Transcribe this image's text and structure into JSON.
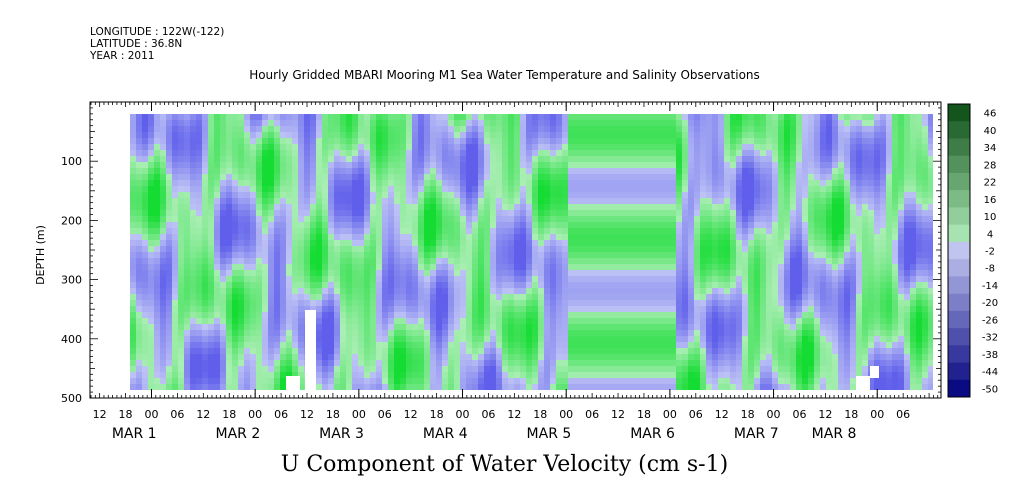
{
  "header": {
    "longitude": "LONGITUDE : 122W(-122)",
    "latitude": "LATITUDE : 36.8N",
    "year": "YEAR : 2011"
  },
  "chart_data": {
    "type": "heatmap",
    "title": "Hourly Gridded MBARI Mooring M1 Sea Water Temperature and Salinity Observations",
    "xlabel": "U Component of Water Velocity (cm s-1)",
    "ylabel": "DEPTH (m)",
    "y_range": [
      0,
      500
    ],
    "y_reversed": true,
    "y_ticks": [
      100,
      200,
      300,
      400,
      500
    ],
    "x_range_hours_since_feb28_00": [
      12,
      184
    ],
    "x_hour_ticks": [
      {
        "h": 12,
        "label": "12"
      },
      {
        "h": 18,
        "label": "18"
      },
      {
        "h": 24,
        "label": "00"
      },
      {
        "h": 30,
        "label": "06"
      },
      {
        "h": 36,
        "label": "12"
      },
      {
        "h": 42,
        "label": "18"
      },
      {
        "h": 48,
        "label": "00"
      },
      {
        "h": 54,
        "label": "06"
      },
      {
        "h": 60,
        "label": "12"
      },
      {
        "h": 66,
        "label": "18"
      },
      {
        "h": 72,
        "label": "00"
      },
      {
        "h": 78,
        "label": "06"
      },
      {
        "h": 84,
        "label": "12"
      },
      {
        "h": 90,
        "label": "18"
      },
      {
        "h": 96,
        "label": "00"
      },
      {
        "h": 102,
        "label": "06"
      },
      {
        "h": 108,
        "label": "12"
      },
      {
        "h": 114,
        "label": "18"
      },
      {
        "h": 120,
        "label": "00"
      },
      {
        "h": 126,
        "label": "06"
      },
      {
        "h": 132,
        "label": "12"
      },
      {
        "h": 138,
        "label": "18"
      },
      {
        "h": 144,
        "label": "00"
      },
      {
        "h": 150,
        "label": "06"
      },
      {
        "h": 156,
        "label": "12"
      },
      {
        "h": 162,
        "label": "18"
      },
      {
        "h": 168,
        "label": "00"
      },
      {
        "h": 174,
        "label": "06"
      },
      {
        "h": 180,
        "label": "12"
      },
      {
        "h": 186,
        "label": "18"
      },
      {
        "h": 192,
        "label": "00"
      },
      {
        "h": 198,
        "label": "06"
      }
    ],
    "x_day_labels": [
      {
        "h": 20,
        "label": "MAR   1"
      },
      {
        "h": 44,
        "label": "MAR   2"
      },
      {
        "h": 68,
        "label": "MAR   3"
      },
      {
        "h": 92,
        "label": "MAR   4"
      },
      {
        "h": 116,
        "label": "MAR   5"
      },
      {
        "h": 140,
        "label": "MAR   6"
      },
      {
        "h": 164,
        "label": "MAR   7"
      },
      {
        "h": 182,
        "label": "MAR   8"
      }
    ],
    "colorbar": {
      "labels": [
        "46",
        "40",
        "34",
        "28",
        "22",
        "16",
        "10",
        "4",
        "-2",
        "-8",
        "-14",
        "-20",
        "-26",
        "-32",
        "-38",
        "-44",
        "-50"
      ],
      "min": -50,
      "max": 50
    }
  }
}
